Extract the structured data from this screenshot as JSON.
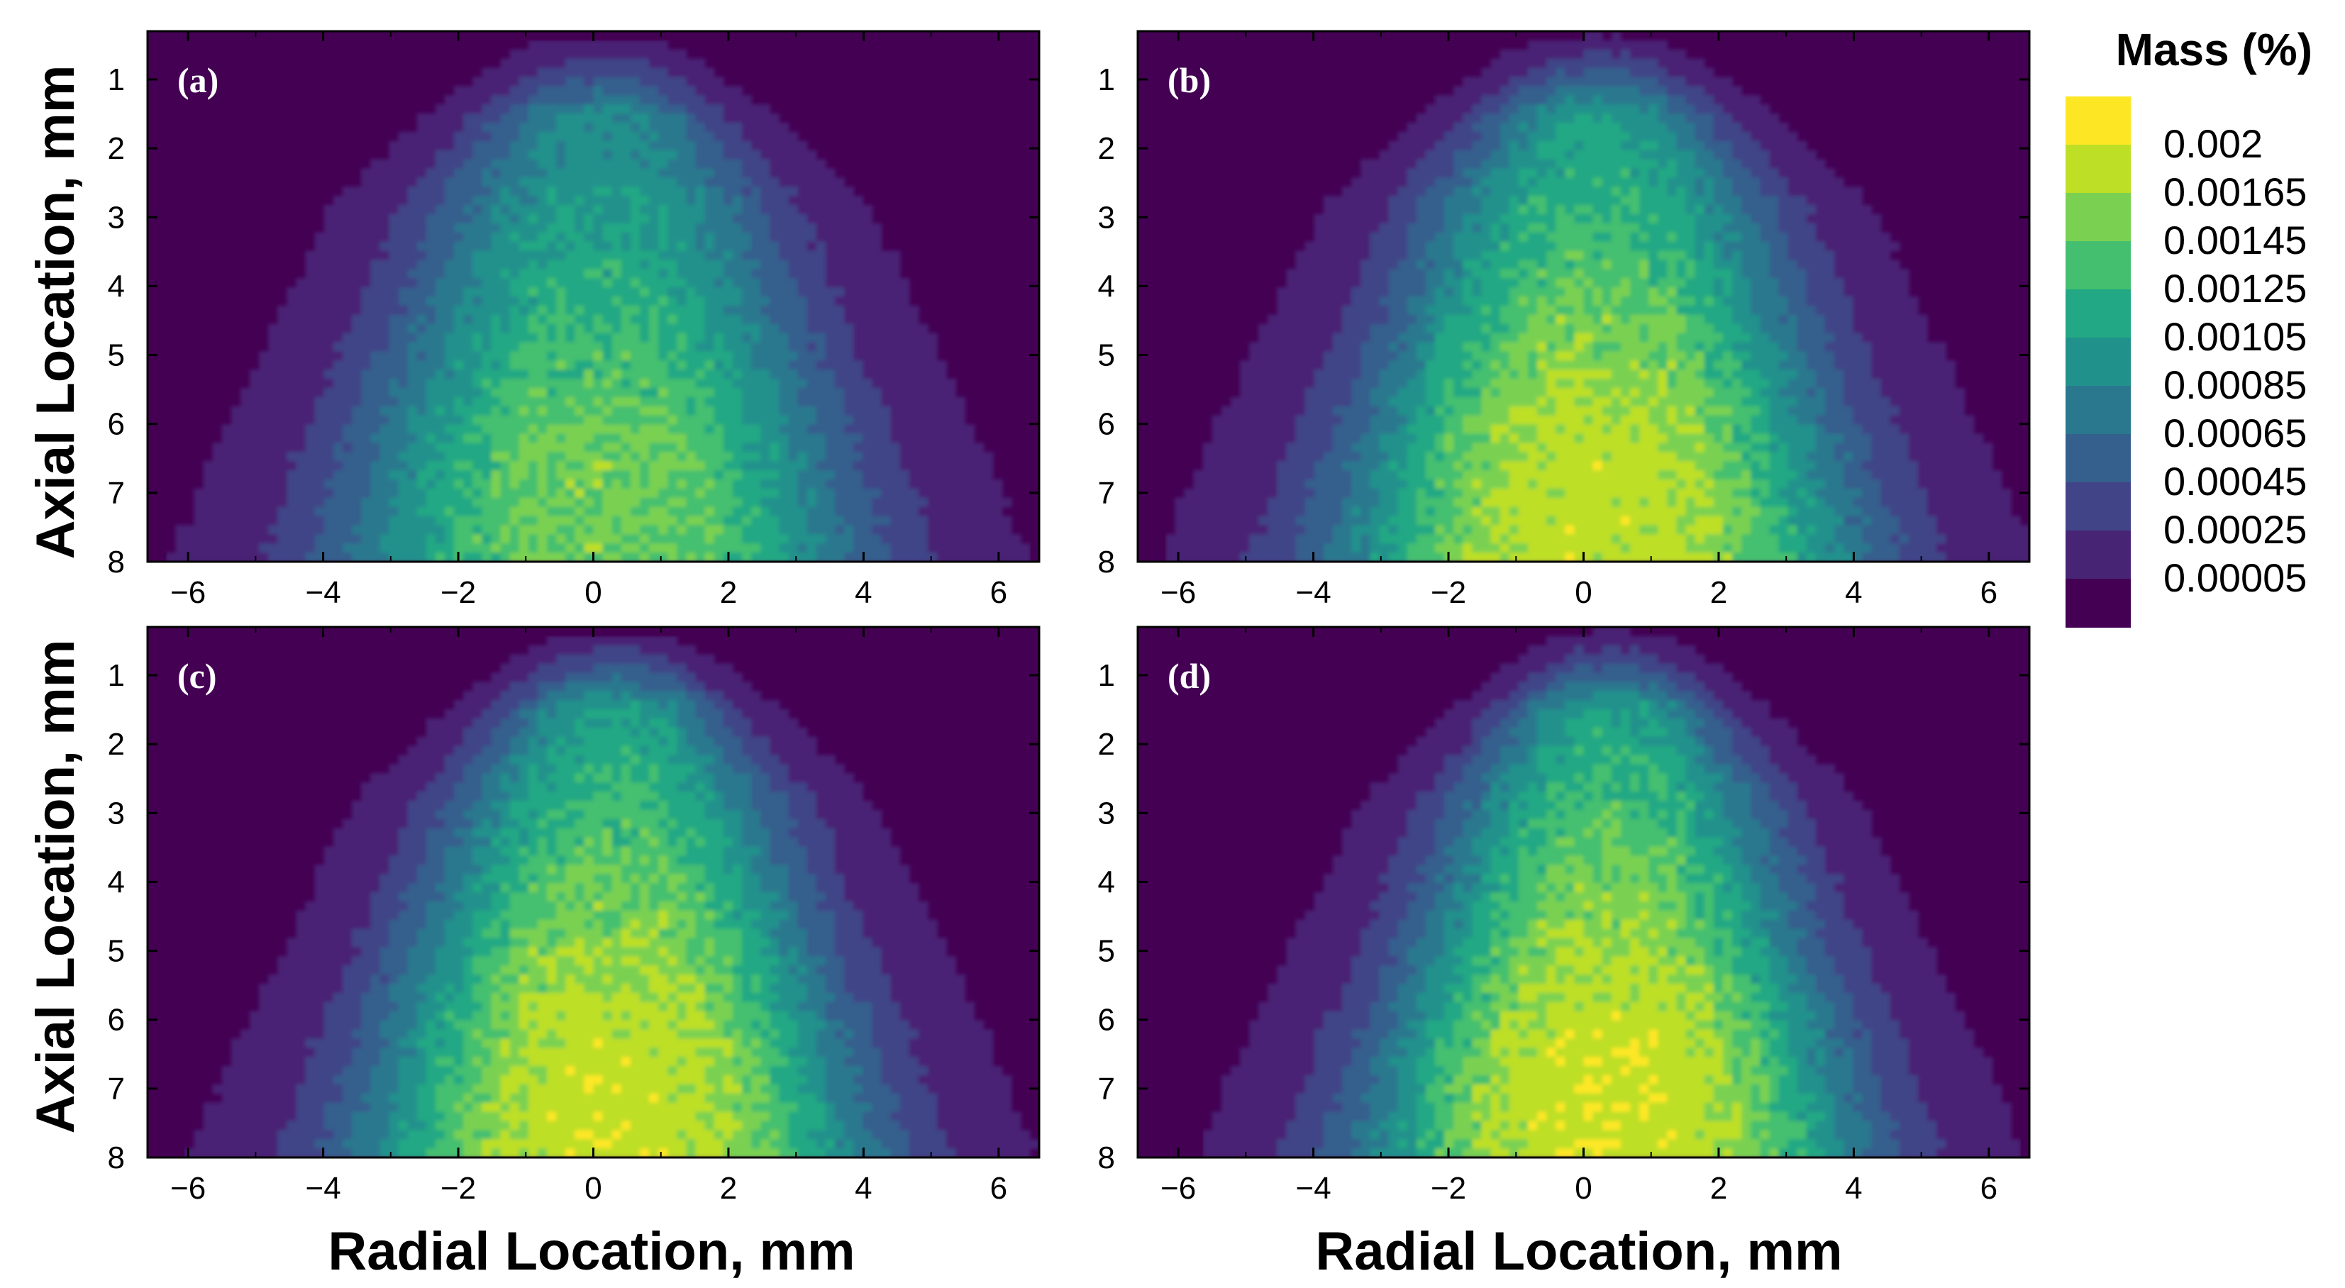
{
  "chart_data": {
    "type": "heatmap",
    "colorbar": {
      "title": "Mass (%)",
      "levels": [
        "0.002",
        "0.00165",
        "0.00145",
        "0.00125",
        "0.00105",
        "0.00085",
        "0.00065",
        "0.00045",
        "0.00025",
        "0.00005"
      ],
      "level_values": [
        0.002,
        0.00165,
        0.00145,
        0.00125,
        0.00105,
        0.00085,
        0.00065,
        0.00045,
        0.00025,
        5e-05
      ],
      "colors": [
        "#fde725",
        "#bddf26",
        "#7ad151",
        "#44bf70",
        "#22a884",
        "#21918c",
        "#2a788e",
        "#355f8d",
        "#414487",
        "#482475",
        "#440154"
      ]
    },
    "xlabel": "Radial Location, mm",
    "ylabel": "Axial Location, mm",
    "xlim": [
      -6.6,
      6.6
    ],
    "ylim": [
      0.3,
      8
    ],
    "x_ticks": [
      "−6",
      "−4",
      "−2",
      "0",
      "2",
      "4",
      "6"
    ],
    "x_tick_values": [
      -6,
      -4,
      -2,
      0,
      2,
      4,
      6
    ],
    "y_ticks": [
      "1",
      "2",
      "3",
      "4",
      "5",
      "6",
      "7",
      "8"
    ],
    "y_tick_values": [
      1,
      2,
      3,
      4,
      5,
      6,
      7,
      8
    ],
    "y_inverted": true,
    "panels": [
      {
        "tag": "(a)",
        "peak": 0.0015,
        "center": 0.1,
        "spread": 1.9
      },
      {
        "tag": "(b)",
        "peak": 0.0018,
        "center": 0.2,
        "spread": 1.9
      },
      {
        "tag": "(c)",
        "peak": 0.00185,
        "center": 0.3,
        "spread": 1.75
      },
      {
        "tag": "(d)",
        "peak": 0.0019,
        "center": 0.4,
        "spread": 1.65
      }
    ]
  }
}
